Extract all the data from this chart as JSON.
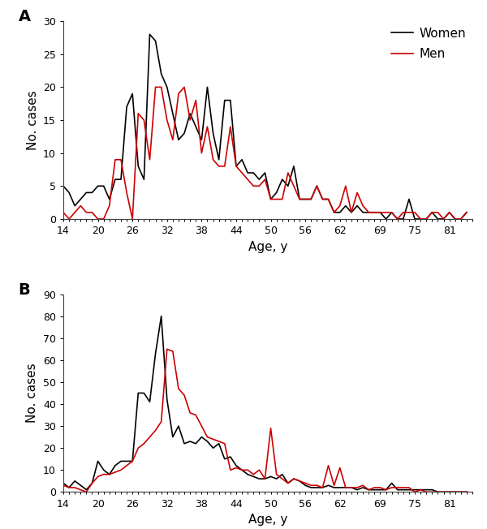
{
  "panel_A": {
    "label": "A",
    "ylabel": "No. cases",
    "xlabel": "Age, y",
    "ylim": [
      0,
      30
    ],
    "yticks": [
      0,
      5,
      10,
      15,
      20,
      25,
      30
    ],
    "xtick_positions": [
      14,
      20,
      26,
      32,
      38,
      44,
      50,
      56,
      62,
      69,
      75,
      81
    ],
    "women_color": "#000000",
    "men_color": "#cc0000",
    "women": [
      [
        14,
        5
      ],
      [
        15,
        4
      ],
      [
        16,
        2
      ],
      [
        17,
        3
      ],
      [
        18,
        4
      ],
      [
        19,
        4
      ],
      [
        20,
        5
      ],
      [
        21,
        5
      ],
      [
        22,
        3
      ],
      [
        23,
        6
      ],
      [
        24,
        6
      ],
      [
        25,
        17
      ],
      [
        26,
        19
      ],
      [
        27,
        8
      ],
      [
        28,
        6
      ],
      [
        29,
        28
      ],
      [
        30,
        27
      ],
      [
        31,
        22
      ],
      [
        32,
        20
      ],
      [
        33,
        16
      ],
      [
        34,
        12
      ],
      [
        35,
        13
      ],
      [
        36,
        16
      ],
      [
        37,
        14
      ],
      [
        38,
        12
      ],
      [
        39,
        20
      ],
      [
        40,
        13
      ],
      [
        41,
        9
      ],
      [
        42,
        18
      ],
      [
        43,
        18
      ],
      [
        44,
        8
      ],
      [
        45,
        9
      ],
      [
        46,
        7
      ],
      [
        47,
        7
      ],
      [
        48,
        6
      ],
      [
        49,
        7
      ],
      [
        50,
        3
      ],
      [
        51,
        4
      ],
      [
        52,
        6
      ],
      [
        53,
        5
      ],
      [
        54,
        8
      ],
      [
        55,
        3
      ],
      [
        56,
        3
      ],
      [
        57,
        3
      ],
      [
        58,
        5
      ],
      [
        59,
        3
      ],
      [
        60,
        3
      ],
      [
        61,
        1
      ],
      [
        62,
        1
      ],
      [
        63,
        2
      ],
      [
        64,
        1
      ],
      [
        65,
        2
      ],
      [
        66,
        1
      ],
      [
        67,
        1
      ],
      [
        68,
        1
      ],
      [
        69,
        1
      ],
      [
        70,
        0
      ],
      [
        71,
        1
      ],
      [
        72,
        0
      ],
      [
        73,
        0
      ],
      [
        74,
        3
      ],
      [
        75,
        0
      ],
      [
        76,
        0
      ],
      [
        77,
        0
      ],
      [
        78,
        1
      ],
      [
        79,
        0
      ],
      [
        80,
        0
      ],
      [
        81,
        1
      ],
      [
        82,
        0
      ],
      [
        83,
        0
      ],
      [
        84,
        1
      ]
    ],
    "men": [
      [
        14,
        1
      ],
      [
        15,
        0
      ],
      [
        16,
        1
      ],
      [
        17,
        2
      ],
      [
        18,
        1
      ],
      [
        19,
        1
      ],
      [
        20,
        0
      ],
      [
        21,
        0
      ],
      [
        22,
        2
      ],
      [
        23,
        9
      ],
      [
        24,
        9
      ],
      [
        25,
        4
      ],
      [
        26,
        0
      ],
      [
        27,
        16
      ],
      [
        28,
        15
      ],
      [
        29,
        9
      ],
      [
        30,
        20
      ],
      [
        31,
        20
      ],
      [
        32,
        15
      ],
      [
        33,
        12
      ],
      [
        34,
        19
      ],
      [
        35,
        20
      ],
      [
        36,
        15
      ],
      [
        37,
        18
      ],
      [
        38,
        10
      ],
      [
        39,
        14
      ],
      [
        40,
        9
      ],
      [
        41,
        8
      ],
      [
        42,
        8
      ],
      [
        43,
        14
      ],
      [
        44,
        8
      ],
      [
        45,
        7
      ],
      [
        46,
        6
      ],
      [
        47,
        5
      ],
      [
        48,
        5
      ],
      [
        49,
        6
      ],
      [
        50,
        3
      ],
      [
        51,
        3
      ],
      [
        52,
        3
      ],
      [
        53,
        7
      ],
      [
        54,
        5
      ],
      [
        55,
        3
      ],
      [
        56,
        3
      ],
      [
        57,
        3
      ],
      [
        58,
        5
      ],
      [
        59,
        3
      ],
      [
        60,
        3
      ],
      [
        61,
        1
      ],
      [
        62,
        2
      ],
      [
        63,
        5
      ],
      [
        64,
        1
      ],
      [
        65,
        4
      ],
      [
        66,
        2
      ],
      [
        67,
        1
      ],
      [
        68,
        1
      ],
      [
        69,
        1
      ],
      [
        70,
        1
      ],
      [
        71,
        1
      ],
      [
        72,
        0
      ],
      [
        73,
        1
      ],
      [
        74,
        1
      ],
      [
        75,
        1
      ],
      [
        76,
        0
      ],
      [
        77,
        0
      ],
      [
        78,
        1
      ],
      [
        79,
        1
      ],
      [
        80,
        0
      ],
      [
        81,
        1
      ],
      [
        82,
        0
      ],
      [
        83,
        0
      ],
      [
        84,
        1
      ]
    ]
  },
  "panel_B": {
    "label": "B",
    "ylabel": "No. cases",
    "xlabel": "Age, y",
    "ylim": [
      0,
      90
    ],
    "yticks": [
      0,
      10,
      20,
      30,
      40,
      50,
      60,
      70,
      80,
      90
    ],
    "xtick_positions": [
      14,
      20,
      26,
      32,
      38,
      44,
      50,
      56,
      62,
      69,
      75,
      81
    ],
    "women_color": "#000000",
    "men_color": "#cc0000",
    "women": [
      [
        14,
        4
      ],
      [
        15,
        2
      ],
      [
        16,
        5
      ],
      [
        17,
        3
      ],
      [
        18,
        1
      ],
      [
        19,
        4
      ],
      [
        20,
        14
      ],
      [
        21,
        10
      ],
      [
        22,
        8
      ],
      [
        23,
        12
      ],
      [
        24,
        14
      ],
      [
        25,
        14
      ],
      [
        26,
        14
      ],
      [
        27,
        45
      ],
      [
        28,
        45
      ],
      [
        29,
        41
      ],
      [
        30,
        63
      ],
      [
        31,
        80
      ],
      [
        32,
        42
      ],
      [
        33,
        25
      ],
      [
        34,
        30
      ],
      [
        35,
        22
      ],
      [
        36,
        23
      ],
      [
        37,
        22
      ],
      [
        38,
        25
      ],
      [
        39,
        23
      ],
      [
        40,
        20
      ],
      [
        41,
        22
      ],
      [
        42,
        15
      ],
      [
        43,
        16
      ],
      [
        44,
        12
      ],
      [
        45,
        10
      ],
      [
        46,
        8
      ],
      [
        47,
        7
      ],
      [
        48,
        6
      ],
      [
        49,
        6
      ],
      [
        50,
        7
      ],
      [
        51,
        6
      ],
      [
        52,
        8
      ],
      [
        53,
        4
      ],
      [
        54,
        6
      ],
      [
        55,
        5
      ],
      [
        56,
        3
      ],
      [
        57,
        2
      ],
      [
        58,
        2
      ],
      [
        59,
        2
      ],
      [
        60,
        3
      ],
      [
        61,
        2
      ],
      [
        62,
        2
      ],
      [
        63,
        2
      ],
      [
        64,
        2
      ],
      [
        65,
        1
      ],
      [
        66,
        2
      ],
      [
        67,
        1
      ],
      [
        68,
        1
      ],
      [
        69,
        1
      ],
      [
        70,
        1
      ],
      [
        71,
        4
      ],
      [
        72,
        1
      ],
      [
        73,
        1
      ],
      [
        74,
        1
      ],
      [
        75,
        1
      ],
      [
        76,
        1
      ],
      [
        77,
        1
      ],
      [
        78,
        1
      ],
      [
        79,
        0
      ],
      [
        80,
        0
      ],
      [
        81,
        0
      ],
      [
        82,
        0
      ],
      [
        83,
        0
      ],
      [
        84,
        0
      ]
    ],
    "men": [
      [
        14,
        3
      ],
      [
        15,
        2
      ],
      [
        16,
        2
      ],
      [
        17,
        1
      ],
      [
        18,
        0
      ],
      [
        19,
        4
      ],
      [
        20,
        7
      ],
      [
        21,
        8
      ],
      [
        22,
        8
      ],
      [
        23,
        9
      ],
      [
        24,
        10
      ],
      [
        25,
        12
      ],
      [
        26,
        14
      ],
      [
        27,
        20
      ],
      [
        28,
        22
      ],
      [
        29,
        25
      ],
      [
        30,
        28
      ],
      [
        31,
        32
      ],
      [
        32,
        65
      ],
      [
        33,
        64
      ],
      [
        34,
        47
      ],
      [
        35,
        44
      ],
      [
        36,
        36
      ],
      [
        37,
        35
      ],
      [
        38,
        30
      ],
      [
        39,
        25
      ],
      [
        40,
        24
      ],
      [
        41,
        23
      ],
      [
        42,
        22
      ],
      [
        43,
        10
      ],
      [
        44,
        11
      ],
      [
        45,
        10
      ],
      [
        46,
        10
      ],
      [
        47,
        8
      ],
      [
        48,
        10
      ],
      [
        49,
        6
      ],
      [
        50,
        29
      ],
      [
        51,
        8
      ],
      [
        52,
        6
      ],
      [
        53,
        4
      ],
      [
        54,
        6
      ],
      [
        55,
        5
      ],
      [
        56,
        4
      ],
      [
        57,
        3
      ],
      [
        58,
        3
      ],
      [
        59,
        2
      ],
      [
        60,
        12
      ],
      [
        61,
        3
      ],
      [
        62,
        11
      ],
      [
        63,
        2
      ],
      [
        64,
        2
      ],
      [
        65,
        2
      ],
      [
        66,
        3
      ],
      [
        67,
        1
      ],
      [
        68,
        2
      ],
      [
        69,
        2
      ],
      [
        70,
        1
      ],
      [
        71,
        2
      ],
      [
        72,
        2
      ],
      [
        73,
        2
      ],
      [
        74,
        2
      ],
      [
        75,
        0
      ],
      [
        76,
        1
      ],
      [
        77,
        0
      ],
      [
        78,
        0
      ],
      [
        79,
        0
      ],
      [
        80,
        0
      ],
      [
        81,
        0
      ],
      [
        82,
        0
      ],
      [
        83,
        0
      ],
      [
        84,
        0
      ]
    ]
  },
  "legend_women_label": "Women",
  "legend_men_label": "Men",
  "line_width": 1.2,
  "tick_fontsize": 9,
  "label_fontsize": 11,
  "panel_label_fontsize": 14
}
